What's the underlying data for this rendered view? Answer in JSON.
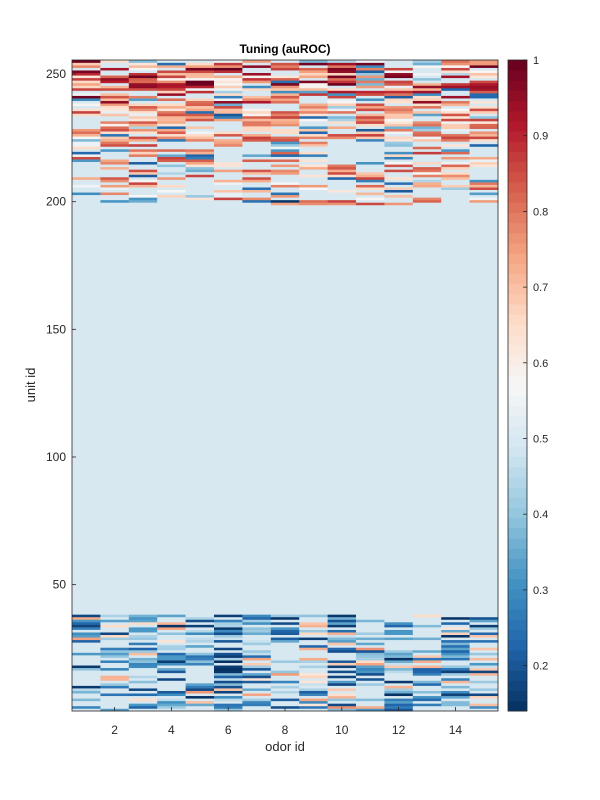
{
  "chart_data": {
    "type": "heatmap",
    "title": "Tuning (auROC)",
    "xlabel": "odor id",
    "ylabel": "unit id",
    "n_odors": 15,
    "n_units": 256,
    "xlim": [
      0.5,
      15.5
    ],
    "ylim": [
      0.5,
      255.5
    ],
    "x_ticks": [
      2,
      4,
      6,
      8,
      10,
      12,
      14
    ],
    "y_ticks": [
      50,
      100,
      150,
      200,
      250
    ],
    "colorbar": {
      "colormap": "RdBu_r",
      "range": [
        0.14,
        1.0
      ],
      "ticks": [
        0.2,
        0.3,
        0.4,
        0.5,
        0.6,
        0.7,
        0.8,
        0.9,
        1
      ]
    },
    "baseline_value": 0.5,
    "responsive_units_low": "units 1-38",
    "responsive_units_high": "units 200-255",
    "sample_strong_cells": [
      {
        "unit": 201,
        "odor": 8,
        "value": 0.15
      },
      {
        "unit": 204,
        "odor": 1,
        "value": 0.3
      },
      {
        "unit": 204,
        "odor": 2,
        "value": 0.78
      },
      {
        "unit": 247,
        "odor": 8,
        "value": 0.98
      },
      {
        "unit": 253,
        "odor": 6,
        "value": 1.0
      }
    ]
  }
}
